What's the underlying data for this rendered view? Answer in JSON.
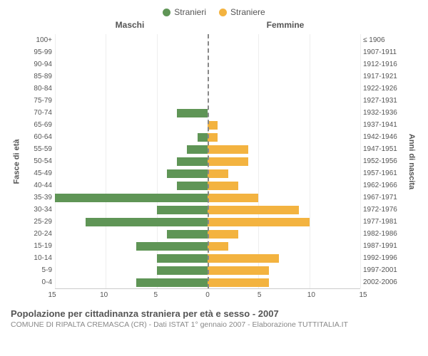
{
  "legend": {
    "male": {
      "label": "Stranieri",
      "color": "#5f9556"
    },
    "female": {
      "label": "Straniere",
      "color": "#f3b340"
    }
  },
  "headers": {
    "left": "Maschi",
    "right": "Femmine"
  },
  "axis_labels": {
    "left": "Fasce di età",
    "right": "Anni di nascita"
  },
  "xaxis": {
    "max": 15,
    "ticks": [
      15,
      10,
      5,
      0,
      5,
      10,
      15
    ]
  },
  "colors": {
    "male_bar": "#5f9556",
    "female_bar": "#f3b340",
    "background": "#ffffff",
    "grid": "#eeeeee",
    "centerline": "#888888",
    "text": "#555555"
  },
  "rows": [
    {
      "age": "100+",
      "birth": "≤ 1906",
      "m": 0,
      "f": 0
    },
    {
      "age": "95-99",
      "birth": "1907-1911",
      "m": 0,
      "f": 0
    },
    {
      "age": "90-94",
      "birth": "1912-1916",
      "m": 0,
      "f": 0
    },
    {
      "age": "85-89",
      "birth": "1917-1921",
      "m": 0,
      "f": 0
    },
    {
      "age": "80-84",
      "birth": "1922-1926",
      "m": 0,
      "f": 0
    },
    {
      "age": "75-79",
      "birth": "1927-1931",
      "m": 0,
      "f": 0
    },
    {
      "age": "70-74",
      "birth": "1932-1936",
      "m": 3,
      "f": 0
    },
    {
      "age": "65-69",
      "birth": "1937-1941",
      "m": 0,
      "f": 1
    },
    {
      "age": "60-64",
      "birth": "1942-1946",
      "m": 1,
      "f": 1
    },
    {
      "age": "55-59",
      "birth": "1947-1951",
      "m": 2,
      "f": 4
    },
    {
      "age": "50-54",
      "birth": "1952-1956",
      "m": 3,
      "f": 4
    },
    {
      "age": "45-49",
      "birth": "1957-1961",
      "m": 4,
      "f": 2
    },
    {
      "age": "40-44",
      "birth": "1962-1966",
      "m": 3,
      "f": 3
    },
    {
      "age": "35-39",
      "birth": "1967-1971",
      "m": 15,
      "f": 5
    },
    {
      "age": "30-34",
      "birth": "1972-1976",
      "m": 5,
      "f": 9
    },
    {
      "age": "25-29",
      "birth": "1977-1981",
      "m": 12,
      "f": 10
    },
    {
      "age": "20-24",
      "birth": "1982-1986",
      "m": 4,
      "f": 3
    },
    {
      "age": "15-19",
      "birth": "1987-1991",
      "m": 7,
      "f": 2
    },
    {
      "age": "10-14",
      "birth": "1992-1996",
      "m": 5,
      "f": 7
    },
    {
      "age": "5-9",
      "birth": "1997-2001",
      "m": 5,
      "f": 6
    },
    {
      "age": "0-4",
      "birth": "2002-2006",
      "m": 7,
      "f": 6
    }
  ],
  "title": "Popolazione per cittadinanza straniera per età e sesso - 2007",
  "subtitle": "COMUNE DI RIPALTA CREMASCA (CR) - Dati ISTAT 1° gennaio 2007 - Elaborazione TUTTITALIA.IT"
}
